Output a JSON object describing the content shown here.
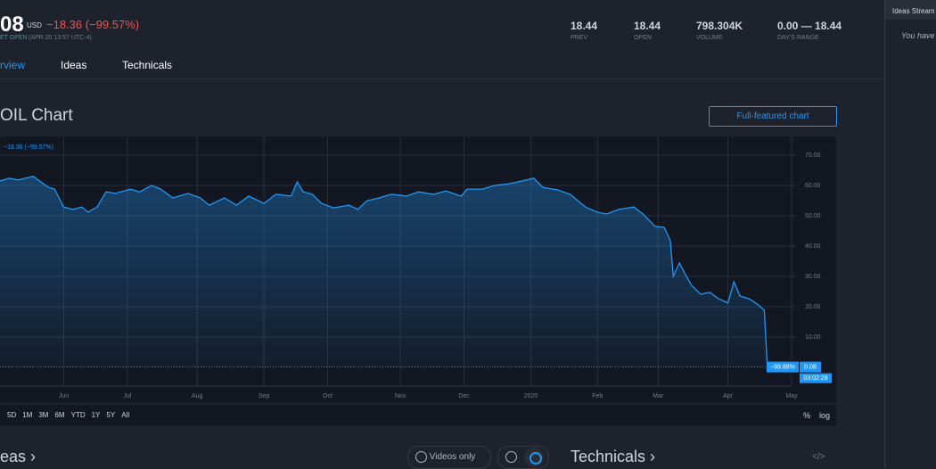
{
  "header": {
    "price": "08",
    "currency": "USD",
    "change": "−18.36 (−99.57%)",
    "status": "ET OPEN",
    "time": "(APR 20 13:57 UTC-4)",
    "stats": [
      {
        "value": "18.44",
        "label": "PREV"
      },
      {
        "value": "18.44",
        "label": "OPEN"
      },
      {
        "value": "798.304K",
        "label": "VOLUME"
      },
      {
        "value": "0.00 — 18.44",
        "label": "DAY'S RANGE"
      }
    ]
  },
  "tabs": [
    "rview",
    "Ideas",
    "Technicals"
  ],
  "sidebar": {
    "title": "Ideas Stream",
    "text": "You have"
  },
  "section": {
    "title": "OIL Chart",
    "button": "Full-featured chart"
  },
  "chart_data": {
    "type": "line",
    "legend_text": "−18.36 (−99.57%)",
    "change_label": "−99.88%",
    "price_label": "0.08",
    "countdown": "03:02:28",
    "xlim": [
      0,
      261
    ],
    "ylim": [
      -6.2,
      76.2
    ],
    "xticks": [
      {
        "value": 21,
        "label": "Jun"
      },
      {
        "value": 42,
        "label": "Jul"
      },
      {
        "value": 65,
        "label": "Aug"
      },
      {
        "value": 87,
        "label": "Sep"
      },
      {
        "value": 108,
        "label": "Oct"
      },
      {
        "value": 132,
        "label": "Nov"
      },
      {
        "value": 153,
        "label": "Dec"
      },
      {
        "value": 175,
        "label": "2020"
      },
      {
        "value": 197,
        "label": "Feb"
      },
      {
        "value": 217,
        "label": "Mar"
      },
      {
        "value": 240,
        "label": "Apr"
      },
      {
        "value": 261,
        "label": "May"
      }
    ],
    "yticks": [
      {
        "value": 10,
        "label": "10.00"
      },
      {
        "value": 20,
        "label": "20.00"
      },
      {
        "value": 30,
        "label": "30.00"
      },
      {
        "value": 40,
        "label": "40.00"
      },
      {
        "value": 50,
        "label": "50.00"
      },
      {
        "value": 60,
        "label": "60.00"
      },
      {
        "value": 70,
        "label": "70.00"
      }
    ],
    "grid": true,
    "series": [
      {
        "color": "#2196f3",
        "x": [
          0,
          3,
          6,
          9,
          11,
          13,
          16,
          18,
          21,
          24,
          27,
          29,
          32,
          35,
          38,
          43,
          46,
          50,
          53,
          57,
          62,
          66,
          69,
          74,
          78,
          82,
          87,
          91,
          96,
          98,
          100,
          103,
          106,
          110,
          115,
          118,
          121,
          125,
          129,
          134,
          138,
          143,
          147,
          152,
          154,
          159,
          163,
          168,
          172,
          176,
          179,
          184,
          188,
          193,
          197,
          200,
          204,
          209,
          212,
          216,
          219,
          221,
          222,
          224,
          226,
          228,
          231,
          234,
          237,
          240,
          242,
          244,
          247,
          250,
          252,
          253
        ],
        "values": [
          61.5,
          62.4,
          61.8,
          62.6,
          63.0,
          61.5,
          59.4,
          58.8,
          52.9,
          52.1,
          52.9,
          51.2,
          52.9,
          57.9,
          57.4,
          58.8,
          57.9,
          60.0,
          58.8,
          55.9,
          57.4,
          55.9,
          53.5,
          55.9,
          53.5,
          56.5,
          54.1,
          57.1,
          56.5,
          61.2,
          57.9,
          57.1,
          54.1,
          52.6,
          53.5,
          52.1,
          55.0,
          55.9,
          57.1,
          56.5,
          57.9,
          57.1,
          58.2,
          56.5,
          58.8,
          58.8,
          60.0,
          60.6,
          61.5,
          62.4,
          59.4,
          58.5,
          57.1,
          52.9,
          51.2,
          50.6,
          52.1,
          52.9,
          50.6,
          46.5,
          46.2,
          41.8,
          30.0,
          34.4,
          30.6,
          27.1,
          24.1,
          24.7,
          22.6,
          21.2,
          28.2,
          23.5,
          22.6,
          20.6,
          18.8,
          0.08
        ]
      }
    ]
  },
  "toolbar": {
    "ranges": [
      "5D",
      "1M",
      "3M",
      "6M",
      "YTD",
      "1Y",
      "5Y",
      "All"
    ],
    "percent": "%",
    "log": "log"
  },
  "bottom": {
    "ideas": "eas ›",
    "videos": "Videos only",
    "technicals": "Technicals ›",
    "embed": "</>"
  }
}
